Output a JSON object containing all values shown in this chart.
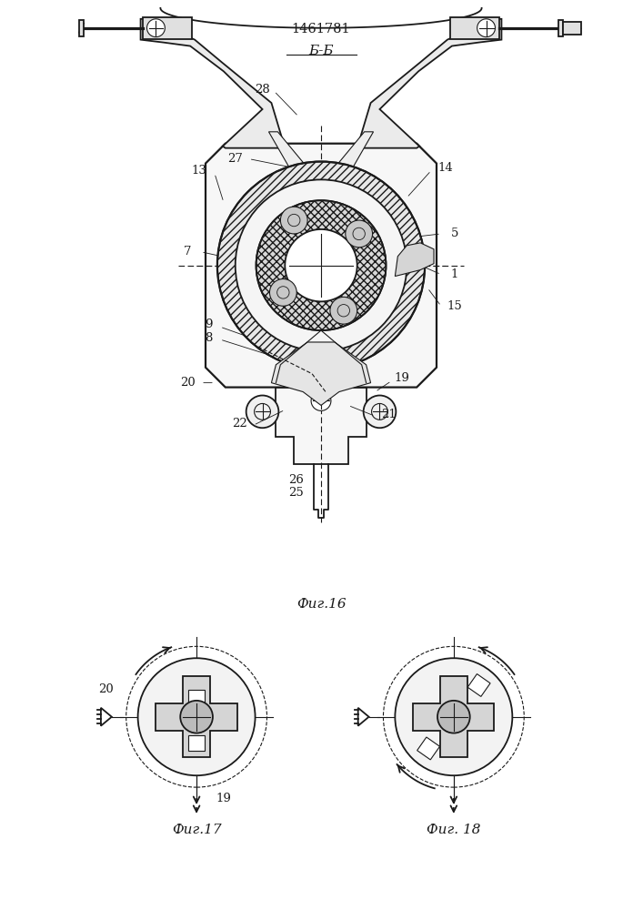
{
  "title": "1461781",
  "section_label": "Б-Б",
  "fig16_label": "Фиг.16",
  "fig17_label": "Фиг.17",
  "fig18_label": "Фиг. 18",
  "bg_color": "#ffffff",
  "line_color": "#1a1a1a"
}
